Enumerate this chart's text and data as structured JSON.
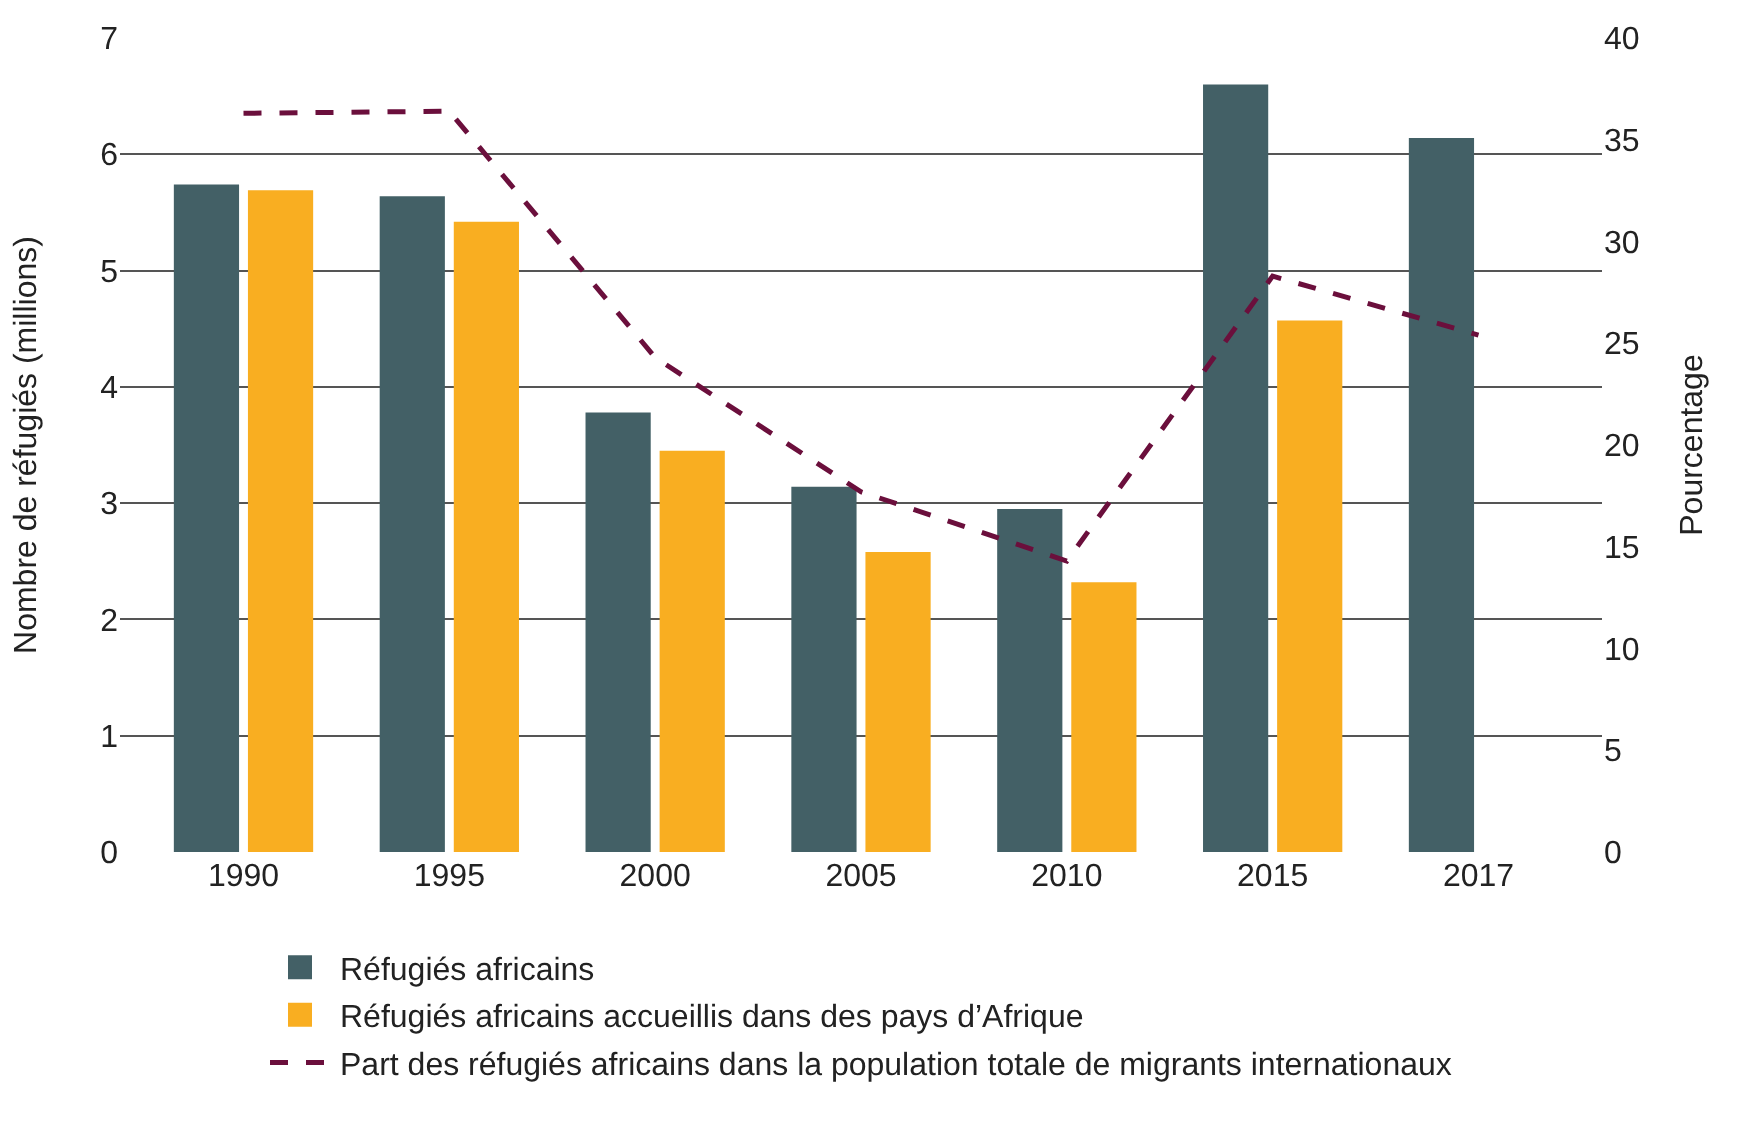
{
  "chart_data": {
    "type": "bar",
    "ylabel": "Nombre de réfugiés (millions)",
    "y2label": "Pourcentage",
    "categories": [
      "1990",
      "1995",
      "2000",
      "2005",
      "2010",
      "2015",
      "2017"
    ],
    "series": [
      {
        "name": "Réfugiés africains",
        "color": "#436066",
        "values": [
          5.74,
          5.64,
          3.78,
          3.14,
          2.95,
          6.6,
          6.14
        ]
      },
      {
        "name": "Réfugiés africains accueillis dans des pays d’Afrique",
        "color": "#f9ae21",
        "values": [
          5.69,
          5.42,
          3.45,
          2.58,
          2.32,
          4.57,
          null
        ]
      },
      {
        "name": "Part des réfugiés africains dans la population totale de migrants internationaux",
        "type": "line",
        "axis": "y2",
        "line_style": "dashed",
        "color": "#6b0f3c",
        "values": [
          36.3,
          36.4,
          24.3,
          17.7,
          14.3,
          28.3,
          25.4
        ]
      }
    ],
    "ylim": [
      0,
      7
    ],
    "yticks": [
      0,
      1,
      2,
      3,
      4,
      5,
      6,
      7
    ],
    "y2lim": [
      0,
      40
    ],
    "y2ticks": [
      0,
      5,
      10,
      15,
      20,
      25,
      30,
      35,
      40
    ],
    "grid": "y",
    "legend": "bottom",
    "marker": "none"
  }
}
